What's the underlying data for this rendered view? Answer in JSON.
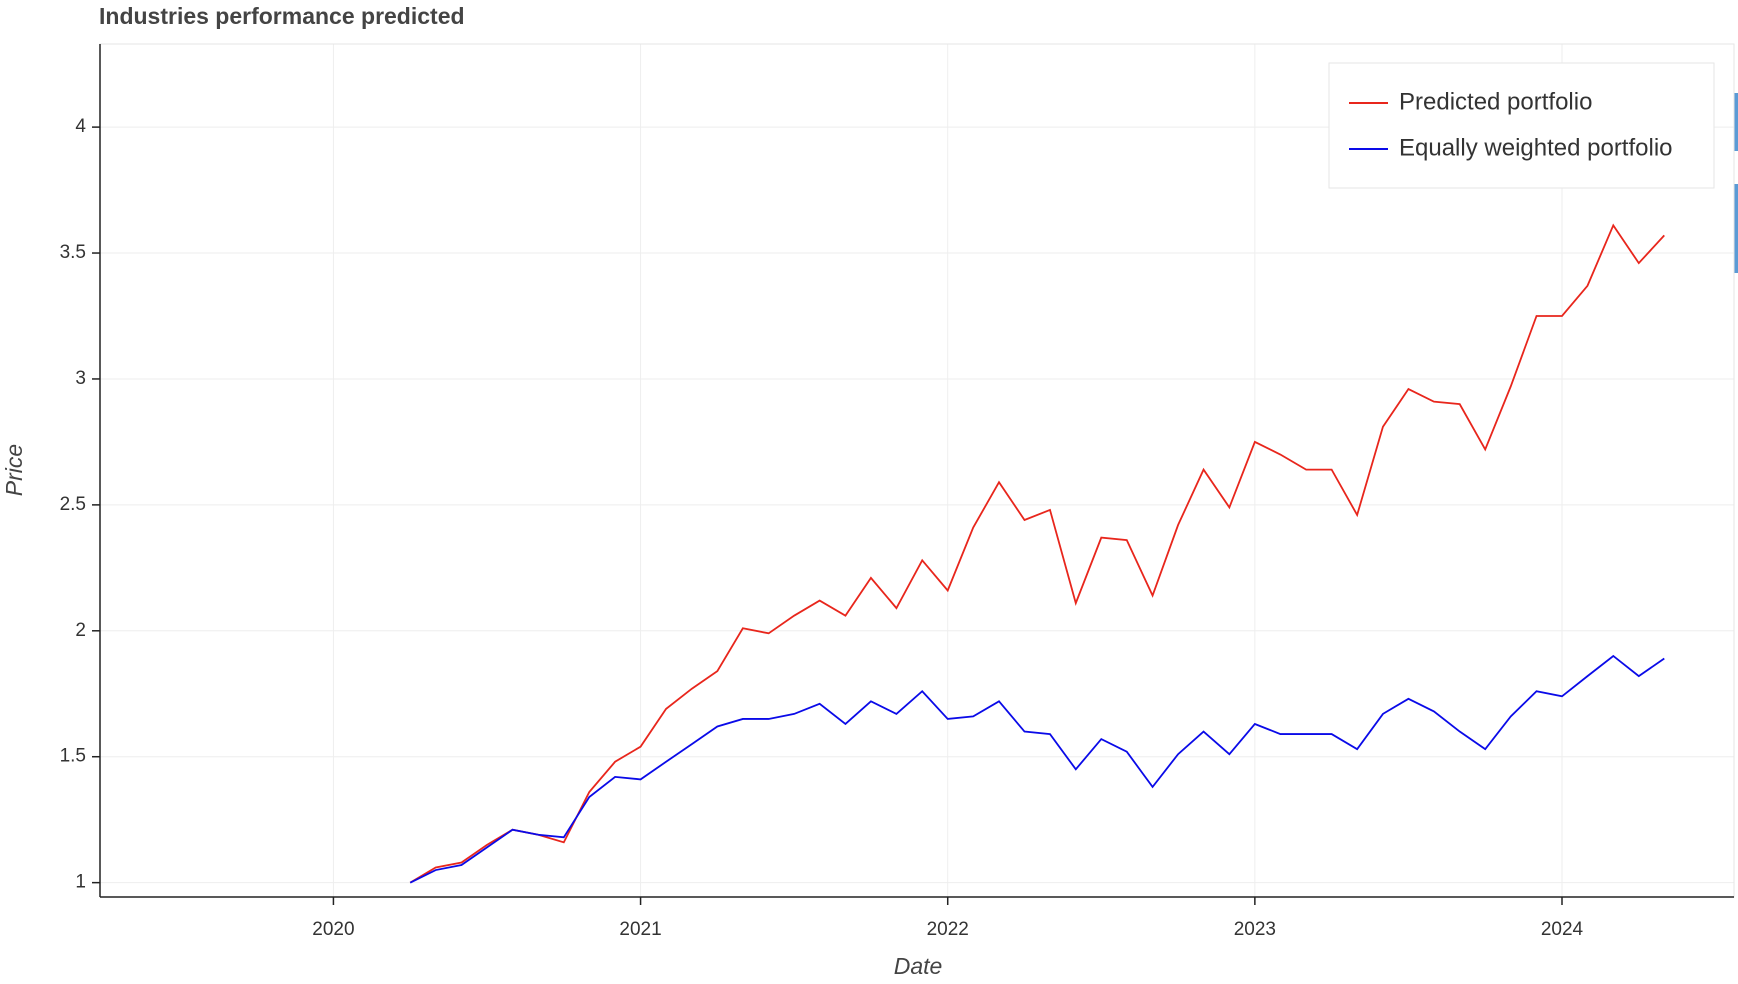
{
  "chart_data": {
    "type": "line",
    "title": "Industries performance predicted",
    "x_label": "Date",
    "y_label": "Price",
    "x": [
      2020.25,
      2020.333,
      2020.417,
      2020.5,
      2020.583,
      2020.667,
      2020.75,
      2020.833,
      2020.917,
      2021,
      2021.083,
      2021.167,
      2021.25,
      2021.333,
      2021.417,
      2021.5,
      2021.583,
      2021.667,
      2021.75,
      2021.833,
      2021.917,
      2022,
      2022.083,
      2022.167,
      2022.25,
      2022.333,
      2022.417,
      2022.5,
      2022.583,
      2022.667,
      2022.75,
      2022.833,
      2022.917,
      2023,
      2023.083,
      2023.167,
      2023.25,
      2023.333,
      2023.417,
      2023.5,
      2023.583,
      2023.667,
      2023.75,
      2023.833,
      2023.917,
      2024,
      2024.083,
      2024.167,
      2024.25,
      2024.333
    ],
    "series": [
      {
        "name": "Predicted portfolio",
        "color": "#e8261c",
        "values": [
          1.0,
          1.06,
          1.08,
          1.15,
          1.21,
          1.19,
          1.16,
          1.36,
          1.48,
          1.54,
          1.69,
          1.77,
          1.84,
          2.01,
          1.99,
          2.06,
          2.12,
          2.06,
          2.21,
          2.09,
          2.28,
          2.16,
          2.41,
          2.59,
          2.44,
          2.48,
          2.11,
          2.37,
          2.36,
          2.14,
          2.42,
          2.64,
          2.49,
          2.75,
          2.7,
          2.64,
          2.64,
          2.46,
          2.81,
          2.96,
          2.91,
          2.9,
          2.72,
          2.97,
          3.25,
          3.25,
          3.37,
          3.61,
          3.46,
          3.57
        ]
      },
      {
        "name": "Equally weighted portfolio",
        "color": "#0a0ae8",
        "values": [
          1.0,
          1.05,
          1.07,
          1.14,
          1.21,
          1.19,
          1.18,
          1.34,
          1.42,
          1.41,
          1.48,
          1.55,
          1.62,
          1.65,
          1.65,
          1.67,
          1.71,
          1.63,
          1.72,
          1.67,
          1.76,
          1.65,
          1.66,
          1.72,
          1.6,
          1.59,
          1.45,
          1.57,
          1.52,
          1.38,
          1.51,
          1.6,
          1.51,
          1.63,
          1.59,
          1.59,
          1.59,
          1.53,
          1.67,
          1.73,
          1.68,
          1.6,
          1.53,
          1.66,
          1.76,
          1.74,
          1.82,
          1.9,
          1.82,
          1.89
        ]
      }
    ],
    "xlim": [
      2019.24,
      2024.56
    ],
    "xticks": [
      2020,
      2021,
      2022,
      2023,
      2024
    ],
    "ylim": [
      0.943,
      4.33
    ],
    "yticks": [
      1,
      1.5,
      2,
      2.5,
      3,
      3.5,
      4
    ],
    "grid": true,
    "legend": "upper right"
  }
}
